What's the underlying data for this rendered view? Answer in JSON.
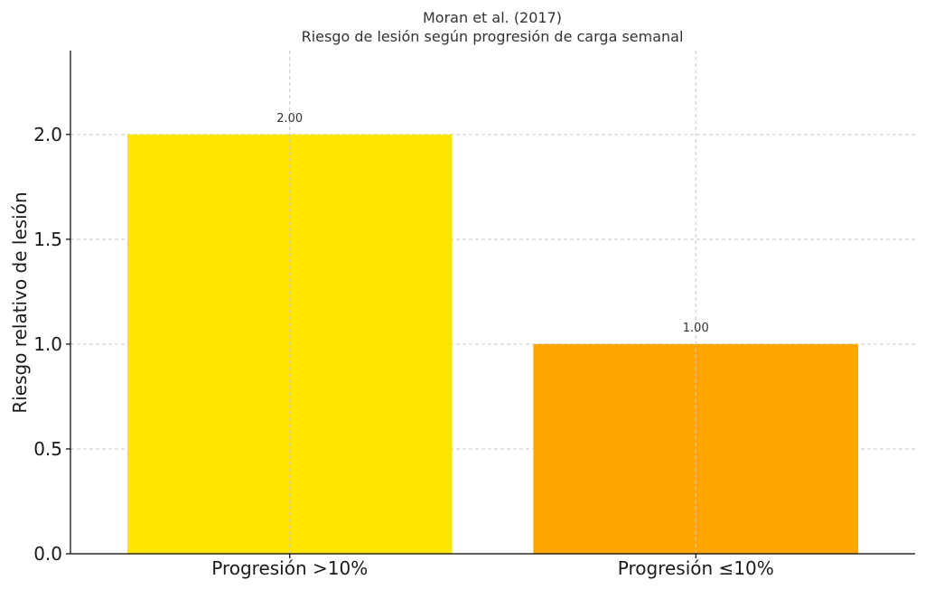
{
  "chart_data": {
    "type": "bar",
    "title": "Moran et al. (2017)",
    "subtitle": "Riesgo de lesión según progresión de carga semanal",
    "xlabel": "",
    "ylabel": "Riesgo relativo de lesión",
    "categories": [
      "Progresión >10%",
      "Progresión ≤10%"
    ],
    "values": [
      2.0,
      1.0
    ],
    "value_labels": [
      "2.00",
      "1.00"
    ],
    "colors": [
      "#FFE600",
      "#FFA500"
    ],
    "ylim": [
      0,
      2.4
    ],
    "yticks": [
      0.0,
      0.5,
      1.0,
      1.5,
      2.0
    ],
    "ytick_labels": [
      "0.0",
      "0.5",
      "1.0",
      "1.5",
      "2.0"
    ],
    "grid": true,
    "legend": "none"
  }
}
